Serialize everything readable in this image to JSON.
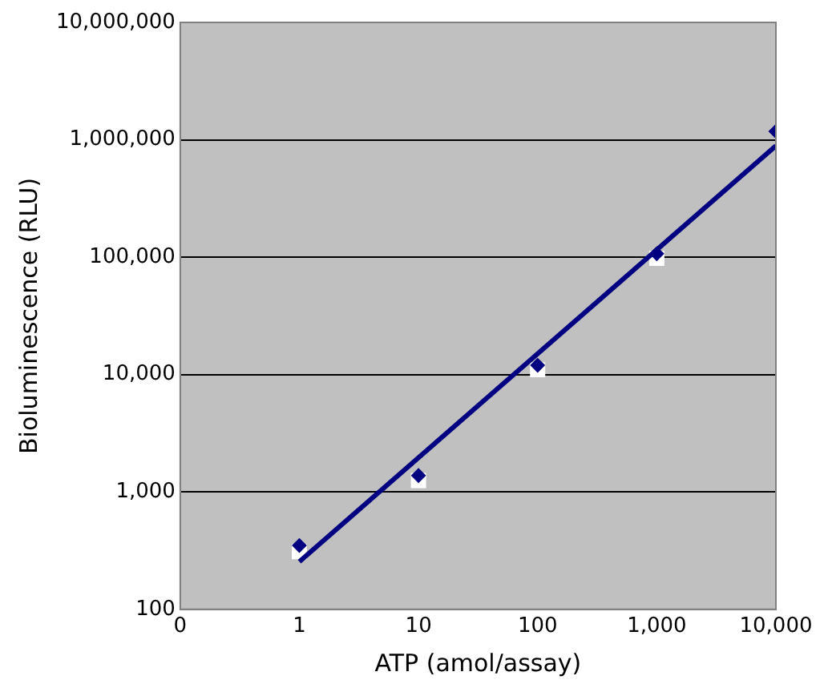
{
  "chart_data": {
    "type": "scatter",
    "xlabel": "ATP (amol/assay)",
    "ylabel": "Bioluminescence (RLU)",
    "log": "xy",
    "grid": "y",
    "legend": false,
    "marker": "diamond",
    "x": [
      1,
      10,
      100,
      1000,
      10000
    ],
    "series": [
      {
        "color": "#ffffff",
        "marker": "square",
        "values": [
          310,
          1250,
          11000,
          98000,
          null
        ]
      },
      {
        "color": "#000080",
        "values": [
          350,
          1380,
          12000,
          107000,
          1180000
        ]
      },
      {
        "type": "line",
        "color": "#000080",
        "marker": "none",
        "x": [
          1,
          10000
        ],
        "values": [
          255,
          890000
        ]
      }
    ],
    "xlim": [
      0.1,
      10000
    ],
    "xticks": [
      {
        "value": 0.1,
        "label": "0"
      },
      1,
      10,
      {
        "value": 100,
        "label": "100"
      },
      {
        "value": 1000,
        "label": "1,000"
      },
      {
        "value": 10000,
        "label": "10,000"
      }
    ],
    "ylim": [
      100,
      10000000
    ],
    "yticks": [
      100,
      {
        "value": 1000,
        "label": "1,000"
      },
      {
        "value": 10000,
        "label": "10,000"
      },
      {
        "value": 100000,
        "label": "100,000"
      },
      {
        "value": 1000000,
        "label": "1,000,000"
      },
      {
        "value": 10000000,
        "label": "10,000,000"
      }
    ]
  }
}
